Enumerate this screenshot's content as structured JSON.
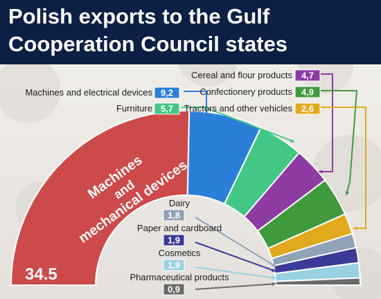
{
  "title_lines": [
    "Polish exports to the Gulf",
    "Cooperation Council states"
  ],
  "chart_data": {
    "type": "pie",
    "title": "Polish exports to the Gulf Cooperation Council states",
    "slices": [
      {
        "name": "Machines and mechanical devices",
        "value": 34.5,
        "label": "34.5",
        "color": "#cc4a4a"
      },
      {
        "name": "Machines and electrical devices",
        "value": 9.2,
        "label": "9,2",
        "color": "#2c7fd8"
      },
      {
        "name": "Furniture",
        "value": 5.7,
        "label": "5,7",
        "color": "#43c786"
      },
      {
        "name": "Cereal and flour products",
        "value": 4.7,
        "label": "4,7",
        "color": "#8e3ba4"
      },
      {
        "name": "Confectionery products",
        "value": 4.9,
        "label": "4,9",
        "color": "#3f9a3d"
      },
      {
        "name": "Tractors and other vehicles",
        "value": 2.6,
        "label": "2,6",
        "color": "#e3a91c"
      },
      {
        "name": "Dairy",
        "value": 1.8,
        "label": "1,8",
        "color": "#8fa2b8"
      },
      {
        "name": "Paper and cardboard",
        "value": 1.9,
        "label": "1,9",
        "color": "#3b3a98"
      },
      {
        "name": "Cosmetics",
        "value": 1.9,
        "label": "1,9",
        "color": "#9ad0e3"
      },
      {
        "name": "Pharmaceutical products",
        "value": 0.9,
        "label": "0,9",
        "color": "#6a6a6a"
      }
    ],
    "big_label_lines": [
      "Machines",
      "and",
      "mechanical devices"
    ]
  }
}
